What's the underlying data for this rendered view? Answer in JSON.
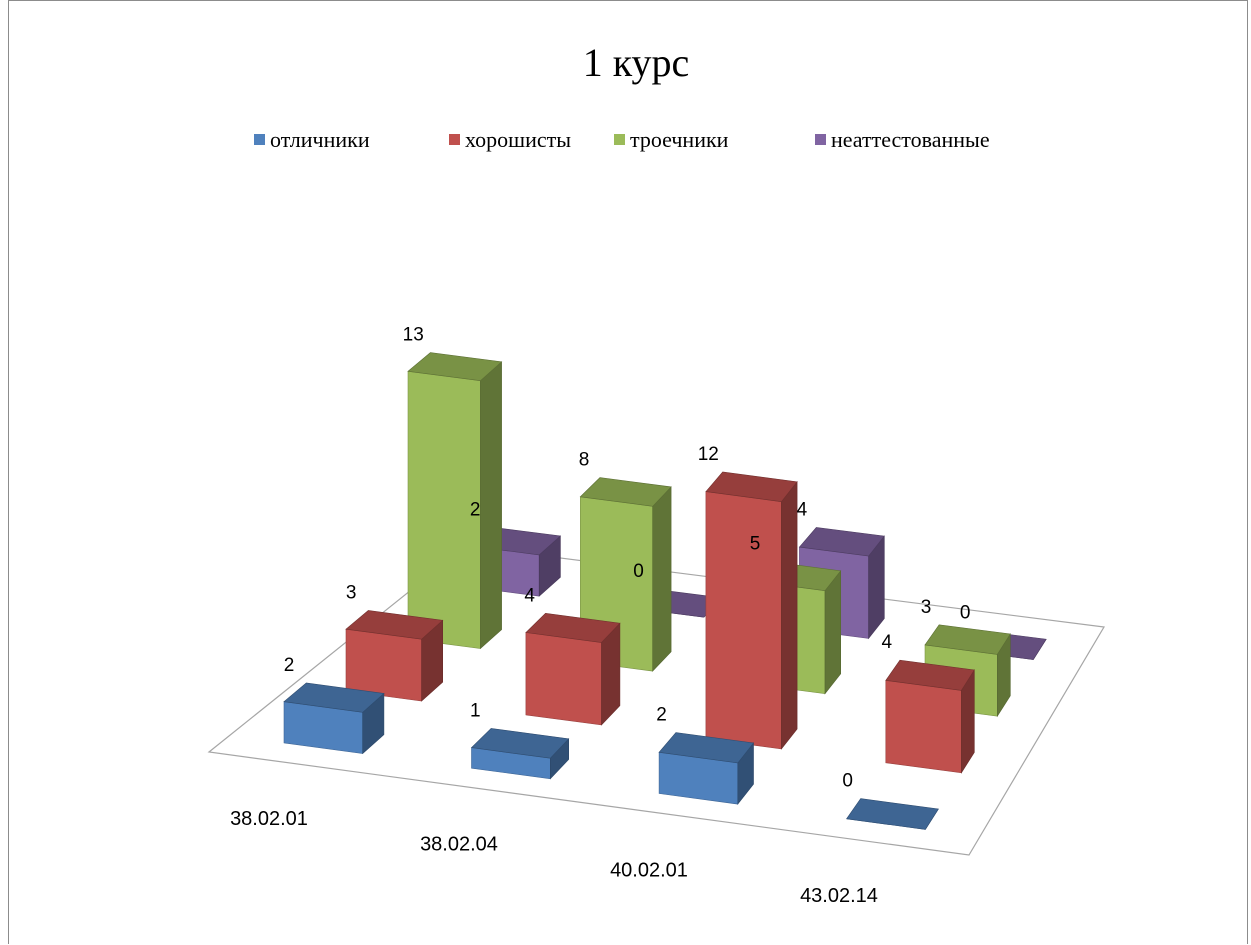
{
  "chart_data": {
    "type": "bar",
    "variant": "3d-column",
    "title": "1 курс",
    "categories": [
      "38.02.01",
      "38.02.04",
      "40.02.01",
      "43.02.14"
    ],
    "series": [
      {
        "name": "отличники",
        "values": [
          2,
          1,
          2,
          0
        ],
        "color": "#4f81bd"
      },
      {
        "name": "хорошисты",
        "values": [
          3,
          4,
          12,
          4
        ],
        "color": "#c0504d"
      },
      {
        "name": "троечники",
        "values": [
          13,
          8,
          5,
          3
        ],
        "color": "#9bbb59"
      },
      {
        "name": "неаттестованные",
        "values": [
          2,
          0,
          4,
          0
        ],
        "color": "#8064a2"
      }
    ],
    "legend_position": "top",
    "data_labels": true,
    "grid": false
  }
}
